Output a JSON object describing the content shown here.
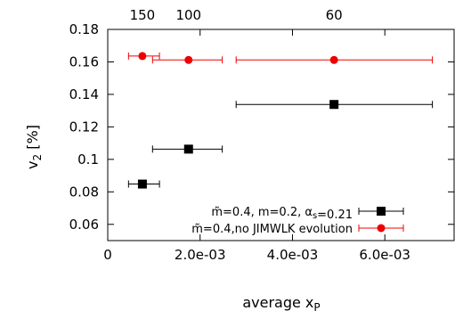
{
  "chart_data": {
    "type": "scatter",
    "xlabel": "average x",
    "xlabel_sub": "P",
    "ylabel": "v",
    "ylabel_sub": "2",
    "ylabel_unit": " [%]",
    "xlim": [
      0,
      0.0075
    ],
    "ylim": [
      0.05,
      0.18
    ],
    "grid": false,
    "x_tick_values": [
      0,
      0.002,
      0.004,
      0.006
    ],
    "x_tick_labels": [
      "0",
      "2.0e-03",
      "4.0e-03",
      "6.0e-03"
    ],
    "y_tick_values": [
      0.06,
      0.08,
      0.1,
      0.12,
      0.14,
      0.16,
      0.18
    ],
    "y_tick_labels": [
      "0.06",
      "0.08",
      "0.1",
      "0.12",
      "0.14",
      "0.16",
      "0.18"
    ],
    "top_axis": {
      "tick_values": [
        0.00075,
        0.00175,
        0.0049
      ],
      "tick_labels": [
        "150",
        "100",
        "60"
      ]
    },
    "legend_position": "bottom-right",
    "series": [
      {
        "legend_parts": [
          {
            "t": "m̃=0.4, m=0.2, α"
          },
          {
            "t": "s",
            "sub": true
          },
          {
            "t": "=0.21"
          }
        ],
        "color": "#000000",
        "marker": "square",
        "points": [
          {
            "x": 0.00075,
            "y": 0.0848,
            "xmin": 0.00045,
            "xmax": 0.00112
          },
          {
            "x": 0.00175,
            "y": 0.1063,
            "xmin": 0.00097,
            "xmax": 0.00248
          },
          {
            "x": 0.0049,
            "y": 0.1338,
            "xmin": 0.00278,
            "xmax": 0.00703
          }
        ]
      },
      {
        "legend_parts": [
          {
            "t": "m̃=0.4,no JIMWLK evolution"
          }
        ],
        "color": "#ee0000",
        "marker": "circle",
        "points": [
          {
            "x": 0.00075,
            "y": 0.1636,
            "xmin": 0.00045,
            "xmax": 0.00112
          },
          {
            "x": 0.00175,
            "y": 0.1612,
            "xmin": 0.00097,
            "xmax": 0.00248
          },
          {
            "x": 0.0049,
            "y": 0.1612,
            "xmin": 0.00278,
            "xmax": 0.00703
          }
        ]
      }
    ]
  }
}
